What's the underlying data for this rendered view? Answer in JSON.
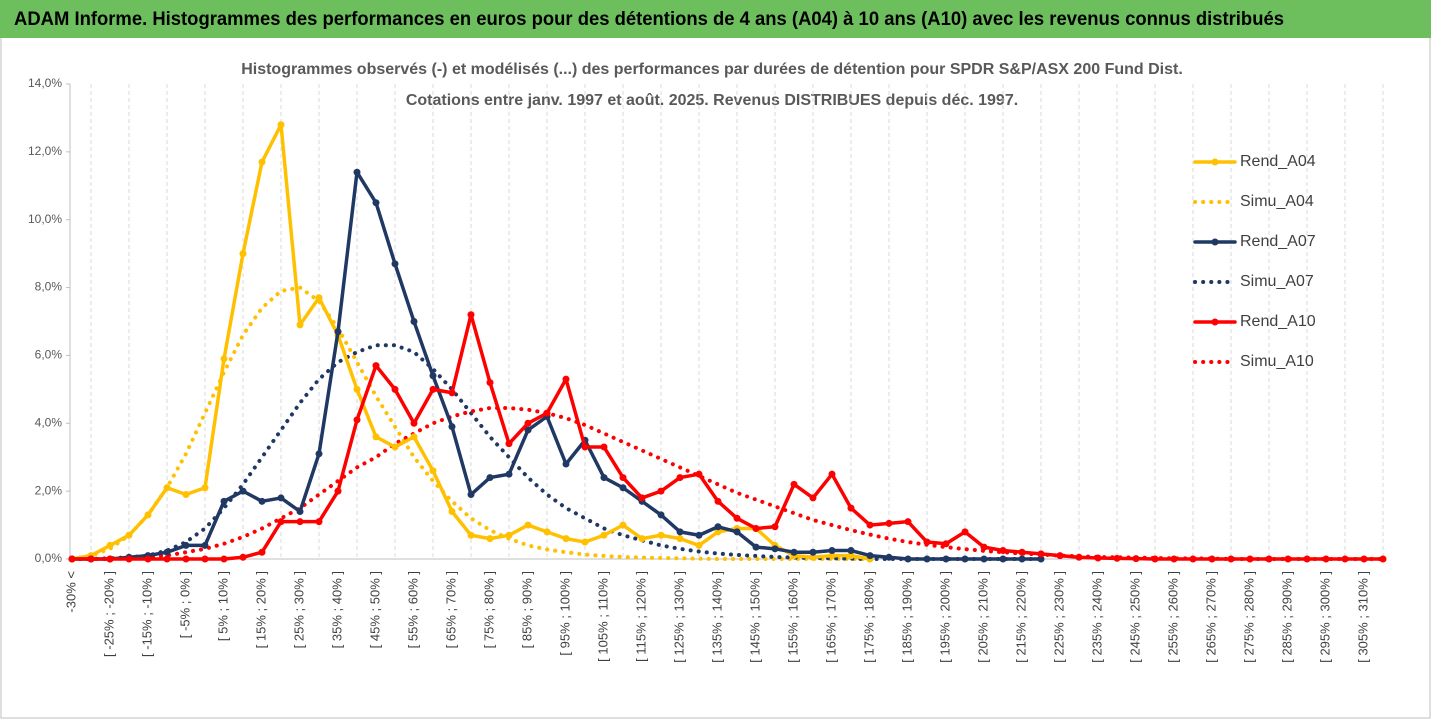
{
  "chart_data": {
    "type": "line",
    "title": "ADAM Informe. Histogrammes des performances en euros pour des détentions de 4 ans (A04) à 10 ans (A10) avec les revenus connus distribués",
    "subtitle": [
      "Histogrammes observés (-) et modélisés (...) des performances par durées de détention pour SPDR S&P/ASX 200 Fund Dist.",
      "Cotations entre janv. 1997 et août. 2025. Revenus DISTRIBUES depuis déc. 1997."
    ],
    "categories": [
      "-30% <",
      null,
      "[ -25% ; -20% ]",
      null,
      "[ -15% ; -10% ]",
      null,
      "[ -5% ; 0% ]",
      null,
      "[ 5% ; 10% ]",
      null,
      "[ 15% ; 20% ]",
      null,
      "[ 25% ; 30% ]",
      null,
      "[ 35% ; 40% ]",
      null,
      "[ 45% ; 50% ]",
      null,
      "[ 55% ; 60% ]",
      null,
      "[ 65% ; 70% ]",
      null,
      "[ 75% ; 80% ]",
      null,
      "[ 85% ; 90% ]",
      null,
      "[ 95% ; 100% ]",
      null,
      "[ 105% ; 110% ]",
      null,
      "[ 115% ; 120% ]",
      null,
      "[ 125% ; 130% ]",
      null,
      "[ 135% ; 140% ]",
      null,
      "[ 145% ; 150% ]",
      null,
      "[ 155% ; 160% ]",
      null,
      "[ 165% ; 170% ]",
      null,
      "[ 175% ; 180% ]",
      null,
      "[ 185% ; 190% ]",
      null,
      "[ 195% ; 200% ]",
      null,
      "[ 205% ; 210% ]",
      null,
      "[ 215% ; 220% ]",
      null,
      "[ 225% ; 230% ]",
      null,
      "[ 235% ; 240% ]",
      null,
      "[ 245% ; 250% ]",
      null,
      "[ 255% ; 260% ]",
      null,
      "[ 265% ; 270% ]",
      null,
      "[ 275% ; 280% ]",
      null,
      "[ 285% ; 290% ]",
      null,
      "[ 295% ; 300% ]",
      null,
      "[ 305% ; 310% ]",
      null
    ],
    "series": [
      {
        "name": "Rend_A04",
        "color": "#ffc000",
        "style": "solid",
        "values": [
          0,
          0.1,
          0.4,
          0.7,
          1.3,
          2.1,
          1.9,
          2.1,
          5.9,
          9.0,
          11.7,
          12.8,
          6.9,
          7.7,
          6.6,
          5.0,
          3.6,
          3.3,
          3.6,
          2.6,
          1.4,
          0.7,
          0.6,
          0.7,
          1.0,
          0.8,
          0.6,
          0.5,
          0.7,
          1.0,
          0.6,
          0.7,
          0.6,
          0.4,
          0.8,
          0.9,
          0.9,
          0.4,
          0.1,
          0.05,
          0.1,
          0.1,
          0,
          null,
          null,
          null,
          null,
          null,
          null,
          null,
          null,
          null,
          null,
          null,
          null,
          null,
          null,
          null,
          null,
          null,
          null,
          null,
          null,
          null,
          null,
          null,
          null,
          null,
          null,
          null
        ]
      },
      {
        "name": "Simu_A04",
        "color": "#ffc000",
        "style": "dotted",
        "values": [
          0,
          0.1,
          0.3,
          0.7,
          1.3,
          2.1,
          3.1,
          4.3,
          5.5,
          6.6,
          7.4,
          7.9,
          8.0,
          7.6,
          6.8,
          5.8,
          4.8,
          3.9,
          3.0,
          2.3,
          1.7,
          1.2,
          0.85,
          0.6,
          0.4,
          0.28,
          0.2,
          0.13,
          0.09,
          0.06,
          0.04,
          0.03,
          0.02,
          0.01,
          0,
          0,
          0,
          0,
          0,
          0,
          0,
          0,
          0,
          null,
          null,
          null,
          null,
          null,
          null,
          null,
          null,
          null,
          null,
          null,
          null,
          null,
          null,
          null,
          null,
          null,
          null,
          null,
          null,
          null,
          null,
          null,
          null,
          null,
          null,
          null
        ]
      },
      {
        "name": "Rend_A07",
        "color": "#1f3864",
        "style": "solid",
        "values": [
          0,
          0,
          0,
          0.05,
          0.1,
          0.2,
          0.4,
          0.4,
          1.7,
          2.0,
          1.7,
          1.8,
          1.4,
          3.1,
          6.7,
          11.4,
          10.5,
          8.7,
          7.0,
          5.4,
          3.9,
          1.9,
          2.4,
          2.5,
          3.8,
          4.2,
          2.8,
          3.5,
          2.4,
          2.1,
          1.7,
          1.3,
          0.8,
          0.7,
          0.95,
          0.8,
          0.35,
          0.3,
          0.2,
          0.2,
          0.25,
          0.25,
          0.1,
          0.05,
          0,
          0,
          0,
          0,
          0,
          0,
          0,
          0,
          null,
          null,
          null,
          null,
          null,
          null,
          null,
          null,
          null,
          null,
          null,
          null,
          null,
          null,
          null,
          null,
          null,
          null
        ]
      },
      {
        "name": "Simu_A07",
        "color": "#1f3864",
        "style": "dotted",
        "values": [
          0,
          0,
          0.02,
          0.05,
          0.1,
          0.25,
          0.5,
          0.9,
          1.5,
          2.2,
          3.0,
          3.8,
          4.6,
          5.3,
          5.8,
          6.1,
          6.3,
          6.3,
          6.1,
          5.6,
          5.0,
          4.3,
          3.6,
          3.0,
          2.4,
          1.9,
          1.5,
          1.2,
          0.9,
          0.7,
          0.55,
          0.4,
          0.3,
          0.22,
          0.16,
          0.12,
          0.09,
          0.06,
          0.04,
          0.03,
          0.02,
          0.01,
          0,
          0,
          0,
          0,
          0,
          0,
          0,
          0,
          0,
          0,
          null,
          null,
          null,
          null,
          null,
          null,
          null,
          null,
          null,
          null,
          null,
          null,
          null,
          null,
          null,
          null,
          null,
          null
        ]
      },
      {
        "name": "Rend_A10",
        "color": "#ff0000",
        "style": "solid",
        "values": [
          0,
          0,
          0,
          0,
          0,
          0,
          0,
          0,
          0,
          0.05,
          0.2,
          1.1,
          1.1,
          1.1,
          2.0,
          4.1,
          5.7,
          5.0,
          4.0,
          5.0,
          4.9,
          7.2,
          5.2,
          3.4,
          4.0,
          4.3,
          5.3,
          3.3,
          3.3,
          2.4,
          1.8,
          2.0,
          2.4,
          2.5,
          1.7,
          1.2,
          0.9,
          0.95,
          2.2,
          1.8,
          2.5,
          1.5,
          1.0,
          1.05,
          1.1,
          0.5,
          0.45,
          0.8,
          0.35,
          0.25,
          0.2,
          0.15,
          0.1,
          0.05,
          0.03,
          0.02,
          0.01,
          0,
          0,
          0,
          0,
          0,
          0,
          0,
          0,
          0,
          0,
          0,
          0,
          0
        ]
      },
      {
        "name": "Simu_A10",
        "color": "#ff0000",
        "style": "dotted",
        "values": [
          0,
          0,
          0,
          0.02,
          0.05,
          0.1,
          0.2,
          0.3,
          0.45,
          0.65,
          0.9,
          1.2,
          1.5,
          1.9,
          2.3,
          2.7,
          3.0,
          3.4,
          3.7,
          4.0,
          4.2,
          4.35,
          4.45,
          4.45,
          4.4,
          4.3,
          4.15,
          3.95,
          3.7,
          3.45,
          3.2,
          2.95,
          2.7,
          2.45,
          2.2,
          1.95,
          1.75,
          1.55,
          1.35,
          1.15,
          1.0,
          0.85,
          0.72,
          0.6,
          0.5,
          0.42,
          0.35,
          0.29,
          0.24,
          0.2,
          0.16,
          0.13,
          0.1,
          0.08,
          0.06,
          0.05,
          0.04,
          0.03,
          0.02,
          0.02,
          0.01,
          0,
          0,
          0,
          0,
          0,
          0,
          0,
          0,
          0
        ]
      }
    ],
    "ylim": [
      0,
      14
    ],
    "yticks": [
      {
        "value": 0,
        "label": "0,0%"
      },
      {
        "value": 2,
        "label": "2,0%"
      },
      {
        "value": 4,
        "label": "4,0%"
      },
      {
        "value": 6,
        "label": "6,0%"
      },
      {
        "value": 8,
        "label": "8,0%"
      },
      {
        "value": 10,
        "label": "10,0%"
      },
      {
        "value": 12,
        "label": "12,0%"
      },
      {
        "value": 14,
        "label": "14,0%"
      }
    ],
    "grid": "x",
    "legend": "right"
  }
}
